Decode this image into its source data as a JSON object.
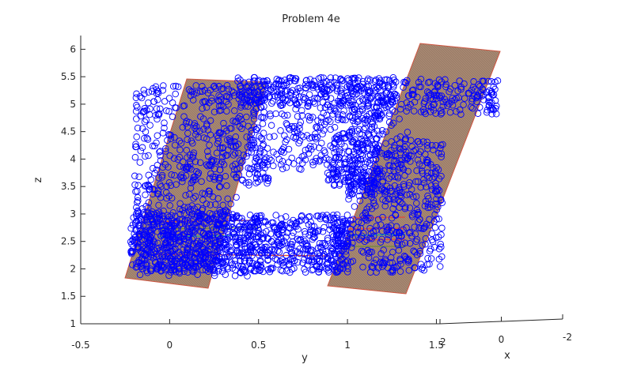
{
  "chart_data": {
    "type": "scatter",
    "title": "Problem 4e",
    "xlabel": "x",
    "ylabel": "y",
    "zlabel": "z",
    "y_ticks": [
      "-0.5",
      "0",
      "0.5",
      "1",
      "1.5"
    ],
    "x_ticks": [
      "2",
      "0",
      "-2"
    ],
    "z_ticks": [
      "1",
      "1.5",
      "2",
      "2.5",
      "3",
      "3.5",
      "4",
      "4.5",
      "5",
      "5.5",
      "6"
    ],
    "zlim": [
      1,
      6.25
    ],
    "ylim": [
      -0.5,
      1.5
    ],
    "xlim": [
      2,
      -2
    ],
    "marker": "open-circle",
    "marker_color": "#0000ff",
    "plane_color": "#9b7f6a",
    "line_colors": [
      "#e04a3a",
      "#1aa0a0",
      "#6a8a3a"
    ],
    "series": [
      {
        "kind": "points",
        "clusters": [
          {
            "region": "left-wall",
            "y": [
              0.0,
              0.45
            ],
            "z": [
              1.95,
              5.4
            ]
          },
          {
            "region": "top-band",
            "y": [
              0.45,
              1.8
            ],
            "z": [
              4.9,
              5.5
            ]
          },
          {
            "region": "upper-band",
            "y": [
              0.45,
              1.8
            ],
            "z": [
              4.0,
              4.9
            ]
          },
          {
            "region": "lower-slab",
            "y": [
              -0.15,
              1.5
            ],
            "z": [
              1.95,
              2.9
            ]
          },
          {
            "region": "right-wall",
            "y": [
              1.05,
              1.45
            ],
            "z": [
              2.0,
              4.9
            ]
          }
        ]
      },
      {
        "kind": "planes",
        "planes": [
          {
            "name": "left plane",
            "z_bottom": 1.8,
            "z_top": 5.5
          },
          {
            "name": "right plane",
            "z_bottom": 1.6,
            "z_top": 6.15
          }
        ]
      }
    ]
  }
}
